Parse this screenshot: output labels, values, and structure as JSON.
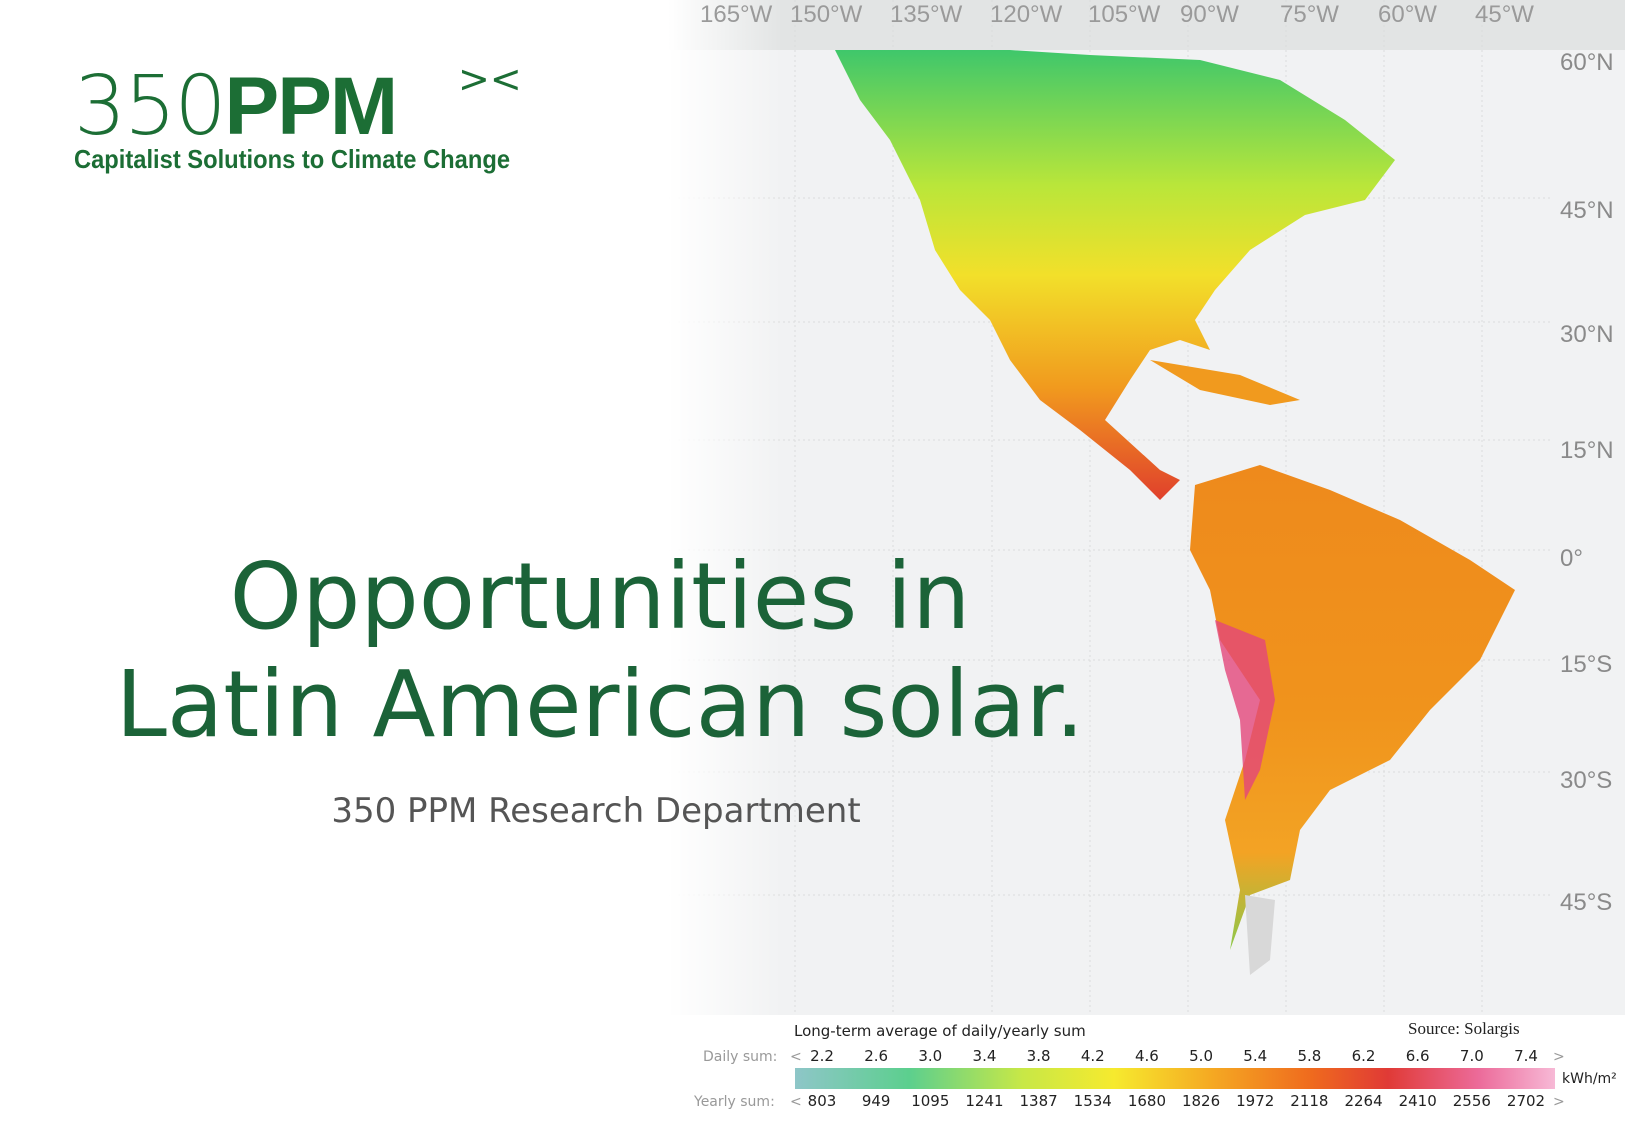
{
  "logo": {
    "number": "350",
    "letters": "PPM",
    "mark": "><",
    "tagline": "Capitalist Solutions to Climate Change"
  },
  "title": {
    "line1": "Opportunities in",
    "line2": "Latin American solar."
  },
  "subtitle": "350 PPM Research Department",
  "map": {
    "longitudes": [
      "165°W",
      "150°W",
      "135°W",
      "120°W",
      "105°W",
      "90°W",
      "75°W",
      "60°W",
      "45°W"
    ],
    "latitudes": [
      "60°N",
      "45°N",
      "30°N",
      "15°N",
      "0°",
      "15°S",
      "30°S",
      "45°S"
    ]
  },
  "legend": {
    "caption": "Long-term average of daily/yearly sum",
    "source": "Source: Solargis",
    "daily_label": "Daily sum:",
    "yearly_label": "Yearly sum:",
    "arrow_left": "<",
    "arrow_right": ">",
    "unit": "kWh/m²",
    "daily": [
      "2.2",
      "2.6",
      "3.0",
      "3.4",
      "3.8",
      "4.2",
      "4.6",
      "5.0",
      "5.4",
      "5.8",
      "6.2",
      "6.6",
      "7.0",
      "7.4"
    ],
    "yearly": [
      "803",
      "949",
      "1095",
      "1241",
      "1387",
      "1534",
      "1680",
      "1826",
      "1972",
      "2118",
      "2264",
      "2410",
      "2556",
      "2702"
    ]
  }
}
